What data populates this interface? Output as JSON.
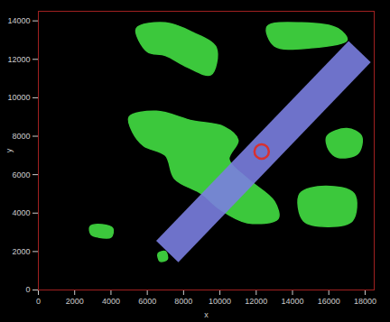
{
  "chart_data": {
    "type": "scatter",
    "xlabel": "x",
    "ylabel": "y",
    "xlim": [
      0,
      18500
    ],
    "ylim": [
      0,
      14500
    ],
    "xticks": [
      0,
      2000,
      4000,
      6000,
      8000,
      10000,
      12000,
      14000,
      16000,
      18000
    ],
    "yticks": [
      0,
      2000,
      4000,
      6000,
      8000,
      10000,
      12000,
      14000
    ],
    "series": [
      {
        "type": "area",
        "color": "#3cc83c",
        "values": [
          [
            [
              5400,
              13600
            ],
            [
              7000,
              13900
            ],
            [
              8500,
              13400
            ],
            [
              9800,
              12600
            ],
            [
              9500,
              11200
            ],
            [
              8200,
              11600
            ],
            [
              7000,
              12200
            ],
            [
              6000,
              12400
            ]
          ],
          [
            [
              12600,
              13700
            ],
            [
              14500,
              13900
            ],
            [
              16500,
              13600
            ],
            [
              17000,
              13000
            ],
            [
              15000,
              12600
            ],
            [
              13000,
              12700
            ]
          ],
          [
            [
              5000,
              9000
            ],
            [
              6500,
              9300
            ],
            [
              8500,
              8800
            ],
            [
              10200,
              8500
            ],
            [
              11000,
              7800
            ],
            [
              10500,
              6800
            ],
            [
              11500,
              5800
            ],
            [
              13000,
              4600
            ],
            [
              13200,
              3700
            ],
            [
              11500,
              3500
            ],
            [
              10000,
              4200
            ],
            [
              9000,
              5000
            ],
            [
              7500,
              5800
            ],
            [
              7000,
              7000
            ],
            [
              5800,
              7500
            ],
            [
              5200,
              8200
            ]
          ],
          [
            [
              15900,
              8000
            ],
            [
              17000,
              8400
            ],
            [
              17800,
              8000
            ],
            [
              17600,
              7100
            ],
            [
              16500,
              6900
            ],
            [
              16000,
              7300
            ]
          ],
          [
            [
              14400,
              5000
            ],
            [
              15800,
              5400
            ],
            [
              17400,
              5000
            ],
            [
              17300,
              3600
            ],
            [
              16000,
              3300
            ],
            [
              14600,
              3600
            ]
          ],
          [
            [
              2850,
              3300
            ],
            [
              3500,
              3400
            ],
            [
              4100,
              3200
            ],
            [
              4000,
              2750
            ],
            [
              3300,
              2750
            ],
            [
              2900,
              2900
            ]
          ],
          [
            [
              6600,
              1900
            ],
            [
              7000,
              2000
            ],
            [
              7100,
              1600
            ],
            [
              6700,
              1500
            ]
          ]
        ]
      },
      {
        "type": "line",
        "color": "#7a7ee0",
        "values": [
          [
            7100,
            2000
          ],
          [
            17700,
            12400
          ]
        ]
      },
      {
        "type": "scatter",
        "color": "#d83030",
        "marker": "circle",
        "values": [
          [
            12300,
            7200
          ]
        ]
      }
    ]
  }
}
